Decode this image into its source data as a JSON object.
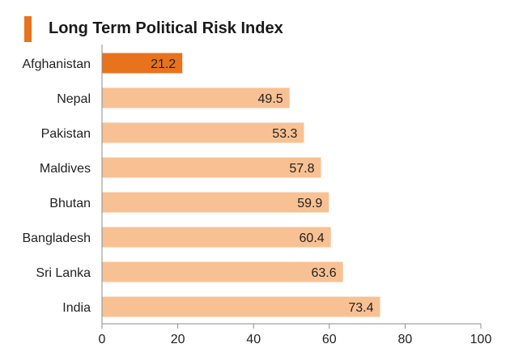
{
  "chart_data": {
    "type": "bar",
    "orientation": "horizontal",
    "title": "Long Term Political Risk Index",
    "categories": [
      "Afghanistan",
      "Nepal",
      "Pakistan",
      "Maldives",
      "Bhutan",
      "Bangladesh",
      "Sri Lanka",
      "India"
    ],
    "values": [
      21.2,
      49.5,
      53.3,
      57.8,
      59.9,
      60.4,
      63.6,
      73.4
    ],
    "value_labels": [
      "21.2",
      "49.5",
      "53.3",
      "57.8",
      "59.9",
      "60.4",
      "63.6",
      "73.4"
    ],
    "xlim": [
      0,
      100
    ],
    "x_ticks": [
      0,
      20,
      40,
      60,
      80,
      100
    ],
    "grid": false,
    "legend": "none",
    "colors": {
      "accent": "#e8731c",
      "highlight_bar": "#e8731c",
      "bar": "#f8c193",
      "axis": "#8c8c8c"
    },
    "highlight_index": 0
  }
}
